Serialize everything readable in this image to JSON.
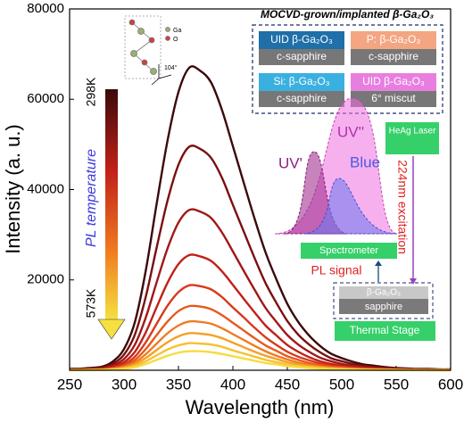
{
  "chart_data": {
    "type": "line",
    "xlabel": "Wavelength (nm)",
    "ylabel": "Intensity (a. u.)",
    "xlim": [
      250,
      600
    ],
    "ylim": [
      0,
      80000
    ],
    "xticks": [
      250,
      300,
      350,
      400,
      450,
      500,
      550,
      600
    ],
    "yticks": [
      20000,
      40000,
      60000,
      80000
    ],
    "x": [
      250,
      260,
      270,
      280,
      290,
      300,
      310,
      320,
      330,
      340,
      350,
      360,
      370,
      380,
      390,
      400,
      410,
      420,
      430,
      440,
      450,
      460,
      470,
      480,
      490,
      500,
      510,
      520,
      530,
      540,
      550,
      560,
      570,
      580,
      590,
      600
    ],
    "series": [
      {
        "color": "#3b0a0a",
        "values": [
          340,
          340,
          540,
          800,
          2000,
          4700,
          10700,
          22100,
          36900,
          50900,
          61600,
          67000,
          66300,
          63700,
          57600,
          49600,
          41500,
          33500,
          26100,
          20100,
          14700,
          10700,
          7700,
          5400,
          3700,
          2700,
          1900,
          1300,
          1000,
          700,
          500,
          400,
          300,
          300,
          200,
          200
        ]
      },
      {
        "color": "#7a0f10",
        "values": [
          250,
          250,
          400,
          590,
          1490,
          3470,
          7920,
          16300,
          27200,
          37600,
          45500,
          49500,
          49000,
          47000,
          42600,
          36600,
          30700,
          24800,
          19300,
          14900,
          10900,
          7900,
          5700,
          4000,
          2700,
          2000,
          1400,
          1000,
          700,
          500,
          400,
          300,
          200,
          200,
          150,
          150
        ]
      },
      {
        "color": "#a01818",
        "values": [
          180,
          180,
          280,
          430,
          1070,
          2490,
          5680,
          11700,
          19500,
          27000,
          32700,
          35500,
          35100,
          33700,
          30500,
          26300,
          22000,
          17800,
          13800,
          10700,
          7800,
          5700,
          4100,
          2800,
          2000,
          1400,
          990,
          710,
          530,
          390,
          280,
          210,
          180,
          140,
          110,
          110
        ]
      },
      {
        "color": "#c02018",
        "values": [
          130,
          130,
          200,
          310,
          770,
          1790,
          4080,
          8400,
          14000,
          19400,
          23500,
          25500,
          25200,
          24200,
          21900,
          18900,
          15800,
          12800,
          9900,
          7700,
          5600,
          4100,
          2900,
          2000,
          1400,
          1000,
          710,
          510,
          380,
          280,
          200,
          150,
          130,
          100,
          80,
          80
        ]
      },
      {
        "color": "#d83a1a",
        "values": [
          90,
          90,
          150,
          230,
          560,
          1320,
          3010,
          6200,
          10300,
          14300,
          17300,
          18800,
          18600,
          17900,
          16200,
          13900,
          11700,
          9400,
          7300,
          5600,
          4100,
          3000,
          2200,
          1500,
          1000,
          750,
          530,
          380,
          280,
          210,
          150,
          110,
          90,
          80,
          60,
          60
        ]
      },
      {
        "color": "#e8581c",
        "values": [
          70,
          70,
          110,
          170,
          430,
          990,
          2270,
          4690,
          7800,
          10800,
          13100,
          14200,
          14100,
          13500,
          12200,
          10500,
          8800,
          7100,
          5500,
          4300,
          3100,
          2300,
          1600,
          1100,
          780,
          570,
          400,
          280,
          210,
          160,
          110,
          90,
          70,
          60,
          40,
          40
        ]
      },
      {
        "color": "#f07a20",
        "values": [
          50,
          50,
          90,
          130,
          320,
          760,
          1730,
          3560,
          5900,
          8200,
          9900,
          10800,
          10700,
          10300,
          9300,
          8000,
          6700,
          5400,
          4200,
          3200,
          2400,
          1700,
          1200,
          860,
          590,
          430,
          300,
          220,
          160,
          120,
          90,
          60,
          50,
          40,
          30,
          30
        ]
      },
      {
        "color": "#f5a028",
        "values": [
          40,
          40,
          70,
          100,
          250,
          570,
          1310,
          2710,
          4500,
          6200,
          7500,
          8200,
          8100,
          7800,
          7100,
          6100,
          5100,
          4100,
          3200,
          2500,
          1800,
          1300,
          940,
          660,
          450,
          330,
          230,
          160,
          120,
          90,
          70,
          50,
          40,
          30,
          25,
          25
        ]
      },
      {
        "color": "#f7c030",
        "values": [
          30,
          30,
          50,
          70,
          180,
          420,
          960,
          1980,
          3300,
          4600,
          5500,
          6000,
          5900,
          5700,
          5200,
          4400,
          3700,
          3000,
          2300,
          1800,
          1300,
          960,
          690,
          480,
          330,
          240,
          170,
          120,
          90,
          70,
          50,
          40,
          30,
          20,
          20,
          20
        ]
      },
      {
        "color": "#f5dc40",
        "values": [
          20,
          20,
          30,
          50,
          130,
          290,
          670,
          1390,
          2300,
          3200,
          3900,
          4200,
          4200,
          4000,
          3600,
          3100,
          2600,
          2100,
          1600,
          1300,
          920,
          670,
          480,
          340,
          230,
          170,
          120,
          80,
          60,
          50,
          30,
          30,
          20,
          20,
          10,
          10
        ]
      }
    ],
    "annotations": {
      "inset_title": "MOCVD-grown/implanted β-Ga₂O₃",
      "samples": [
        [
          "UID β-Ga₂O₃",
          "c-sapphire"
        ],
        [
          "P: β-Ga₂O₃",
          "c-sapphire"
        ],
        [
          "Si: β-Ga₂O₃",
          "c-sapphire"
        ],
        [
          "UID β-Ga₂O₃",
          "6° miscut"
        ]
      ],
      "temp_high": "298K",
      "temp_low": "573K",
      "temp_label": "PL temperature",
      "uv2": "UV''",
      "uv1": "UV'",
      "blue": "Blue",
      "laser": "HeAg Laser",
      "excitation": "224nm excitation",
      "spectrometer": "Spectrometer",
      "pl_signal": "PL signal",
      "layer": "β-Ga₂O₃",
      "substrate": "sapphire",
      "stage": "Thermal Stage",
      "atom_ga": "Ga",
      "atom_o": "O",
      "angle": "104°"
    }
  }
}
